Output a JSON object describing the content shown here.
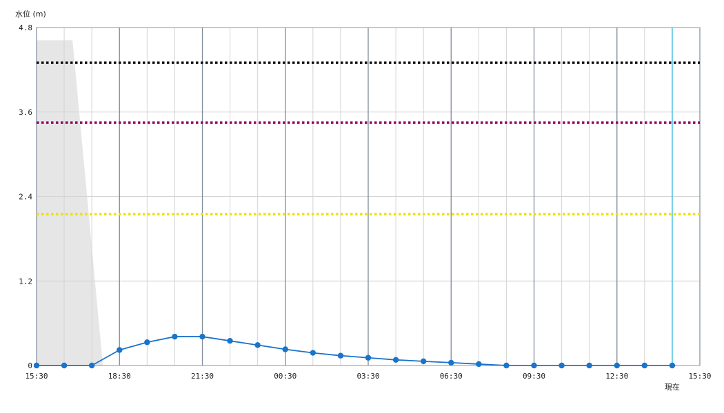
{
  "chart_data": {
    "type": "line",
    "ylabel": "水位 (m)",
    "ylim": [
      0,
      4.8
    ],
    "y_ticks": [
      "0",
      "1.2",
      "2.4",
      "3.6",
      "4.8"
    ],
    "y_tick_values": [
      0,
      1.2,
      2.4,
      3.6,
      4.8
    ],
    "x_tick_labels": [
      "15:30",
      "18:30",
      "21:30",
      "00:30",
      "03:30",
      "06:30",
      "09:30",
      "12:30",
      "15:30"
    ],
    "x_hours_range": [
      0,
      24
    ],
    "now_label": "現在",
    "now_hour": 23,
    "thresholds": [
      {
        "value": 4.3,
        "color": "#111111"
      },
      {
        "value": 3.45,
        "color": "#990066"
      },
      {
        "value": 2.15,
        "color": "#f0e000"
      }
    ],
    "shaded_area": {
      "color": "#e6e6e6",
      "points": [
        [
          0,
          4.62
        ],
        [
          1.3,
          4.62
        ],
        [
          2.4,
          0
        ]
      ]
    },
    "series": [
      {
        "color": "#1a73cc",
        "x": [
          0,
          1,
          2,
          3,
          4,
          5,
          6,
          7,
          8,
          9,
          10,
          11,
          12,
          13,
          14,
          15,
          16,
          17,
          18,
          19,
          20,
          21,
          22,
          23
        ],
        "values": [
          0,
          0,
          0,
          0.22,
          0.33,
          0.41,
          0.41,
          0.35,
          0.29,
          0.23,
          0.18,
          0.14,
          0.11,
          0.08,
          0.06,
          0.04,
          0.02,
          0,
          0,
          0,
          0,
          0,
          0,
          0
        ]
      }
    ]
  }
}
